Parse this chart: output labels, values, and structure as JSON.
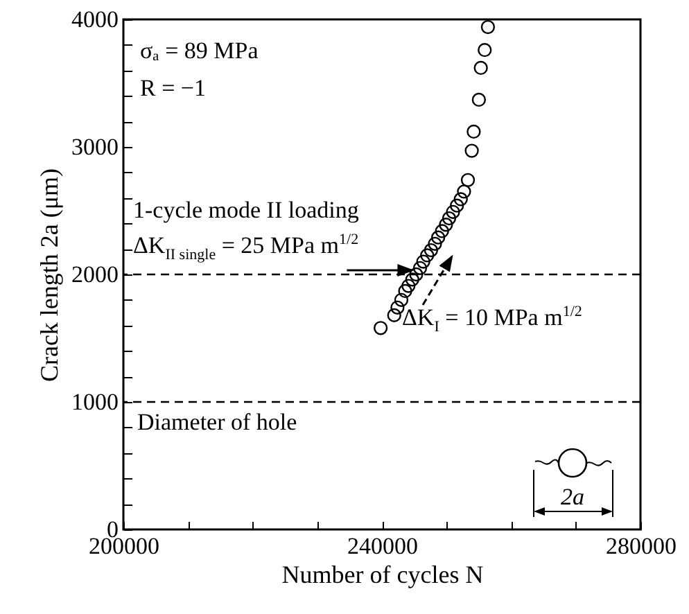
{
  "chart_data": {
    "type": "scatter",
    "xlabel": "Number of cycles N",
    "ylabel": "Crack length 2a (μm)",
    "x": [
      239800,
      241900,
      242400,
      243000,
      243600,
      244100,
      244700,
      245300,
      245900,
      246400,
      247000,
      247600,
      248200,
      248700,
      249300,
      249900,
      250400,
      251000,
      251600,
      252200,
      252700,
      253300,
      253900,
      254200,
      255000,
      255300,
      255900,
      256400
    ],
    "series": [
      {
        "color": "#000000",
        "values": [
          1580,
          1680,
          1740,
          1800,
          1870,
          1910,
          1960,
          2000,
          2050,
          2100,
          2150,
          2190,
          2240,
          2290,
          2340,
          2390,
          2440,
          2490,
          2540,
          2590,
          2650,
          2740,
          2970,
          3120,
          3370,
          3620,
          3760,
          3940
        ]
      }
    ],
    "xlim": [
      200000,
      280000
    ],
    "xticks": [
      200000,
      {
        "value": 210000,
        "label": null
      },
      {
        "value": 220000,
        "label": null
      },
      {
        "value": 230000,
        "label": null
      },
      240000,
      {
        "value": 250000,
        "label": null
      },
      {
        "value": 260000,
        "label": null
      },
      {
        "value": 270000,
        "label": null
      },
      280000
    ],
    "ylim": [
      0,
      4000
    ],
    "yticks": [
      0,
      {
        "value": 200,
        "label": null
      },
      {
        "value": 400,
        "label": null
      },
      {
        "value": 600,
        "label": null
      },
      {
        "value": 800,
        "label": null
      },
      1000,
      {
        "value": 1200,
        "label": null
      },
      {
        "value": 1400,
        "label": null
      },
      {
        "value": 1600,
        "label": null
      },
      {
        "value": 1800,
        "label": null
      },
      2000,
      {
        "value": 2200,
        "label": null
      },
      {
        "value": 2400,
        "label": null
      },
      {
        "value": 2600,
        "label": null
      },
      {
        "value": 2800,
        "label": null
      },
      3000,
      {
        "value": 3200,
        "label": null
      },
      {
        "value": 3400,
        "label": null
      },
      {
        "value": 3600,
        "label": null
      },
      {
        "value": 3800,
        "label": null
      },
      4000
    ],
    "ref_lines": [
      {
        "axis": "y",
        "value": 2000,
        "line_style": "dashed"
      },
      {
        "axis": "y",
        "value": 1000,
        "label": "Diameter of hole",
        "line_style": "dashed"
      }
    ],
    "annotations": [
      "σₐ = 89 MPa",
      "R = −1",
      "1-cycle mode II loading",
      {
        "text": "ΔK$_{II single}$ = 25 MPa m$^{1/2}$",
        "x": 245300,
        "y": 2000
      },
      "ΔK$_{I}$ = 10 MPa m$^{1/2}$",
      "2a"
    ],
    "marker": "circle",
    "grid": false
  }
}
